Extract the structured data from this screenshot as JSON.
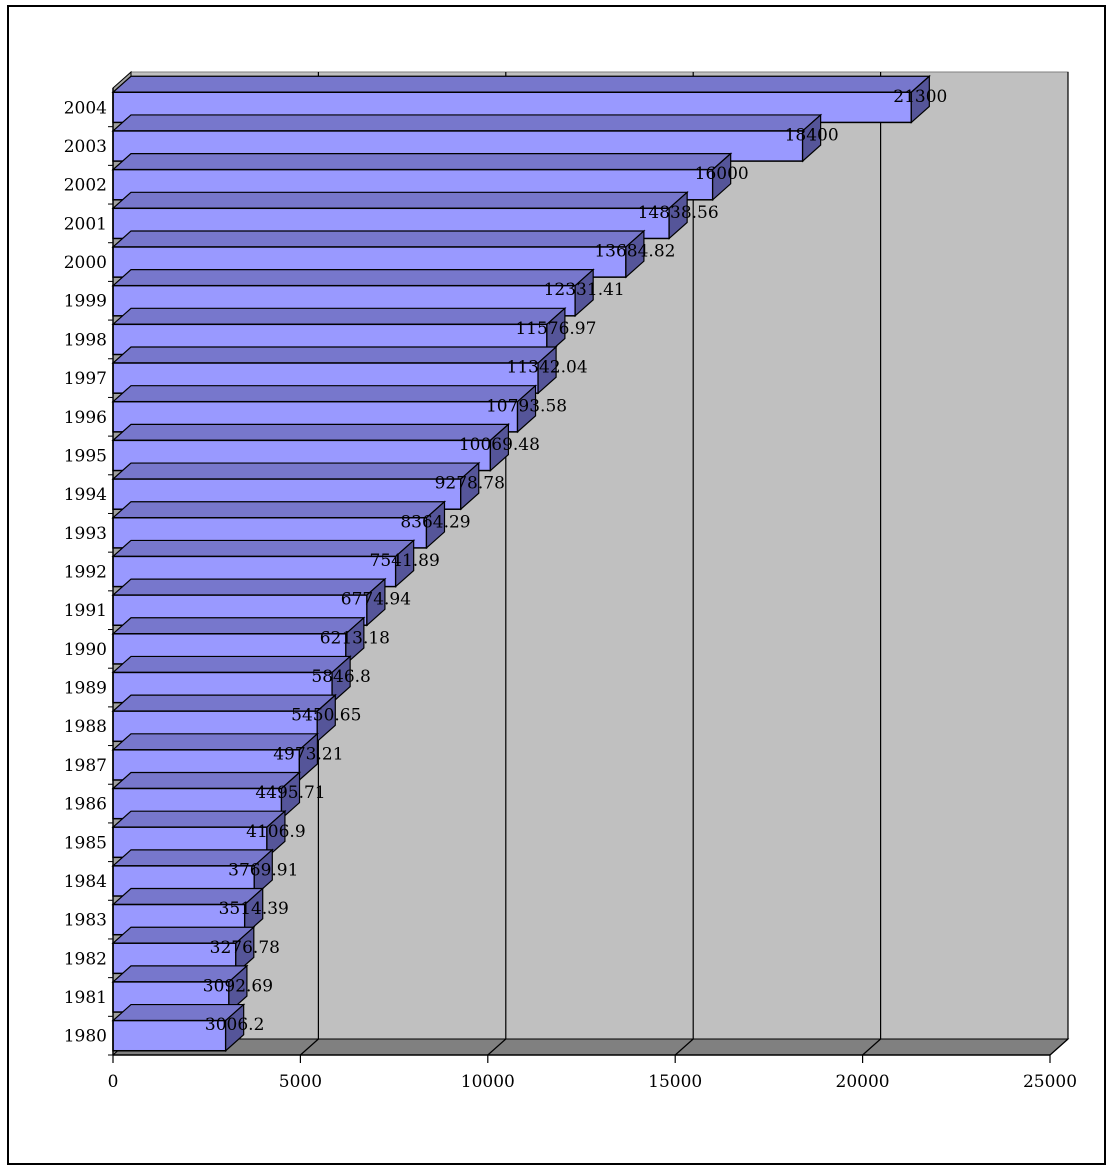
{
  "chart_data": {
    "type": "bar",
    "orientation": "horizontal",
    "style": "3d",
    "categories": [
      "1980",
      "1981",
      "1982",
      "1983",
      "1984",
      "1985",
      "1986",
      "1987",
      "1988",
      "1989",
      "1990",
      "1991",
      "1992",
      "1993",
      "1994",
      "1995",
      "1996",
      "1997",
      "1998",
      "1999",
      "2000",
      "2001",
      "2002",
      "2003",
      "2004"
    ],
    "values": [
      3006.2,
      3092.69,
      3276.78,
      3514.39,
      3769.91,
      4106.9,
      4495.71,
      4973.21,
      5450.65,
      5846.8,
      6213.18,
      6774.94,
      7541.89,
      8364.29,
      9278.78,
      10069.48,
      10793.58,
      11342.04,
      11576.97,
      12331.41,
      13684.82,
      14838.56,
      16000,
      18400,
      21300
    ],
    "value_labels": [
      "3006.2",
      "3092.69",
      "3276.78",
      "3514.39",
      "3769.91",
      "4106.9",
      "4495.71",
      "4973.21",
      "5450.65",
      "5846.8",
      "6213.18",
      "6774.94",
      "7541.89",
      "8364.29",
      "9278.78",
      "10069.48",
      "10793.58",
      "11342.04",
      "11576.97",
      "12331.41",
      "13684.82",
      "14838.56",
      "16000",
      "18400",
      "21300"
    ],
    "x_ticks": [
      "0",
      "5000",
      "10000",
      "15000",
      "20000",
      "25000"
    ],
    "xlim": [
      0,
      25000
    ],
    "grid": "vertical",
    "legend": "none",
    "colors": {
      "bar_front": "#9999ff",
      "bar_top": "#7777cc",
      "bar_side": "#555599",
      "back_wall": "#c0c0c0",
      "side_wall": "#a0a0a0",
      "floor": "#808080"
    }
  }
}
